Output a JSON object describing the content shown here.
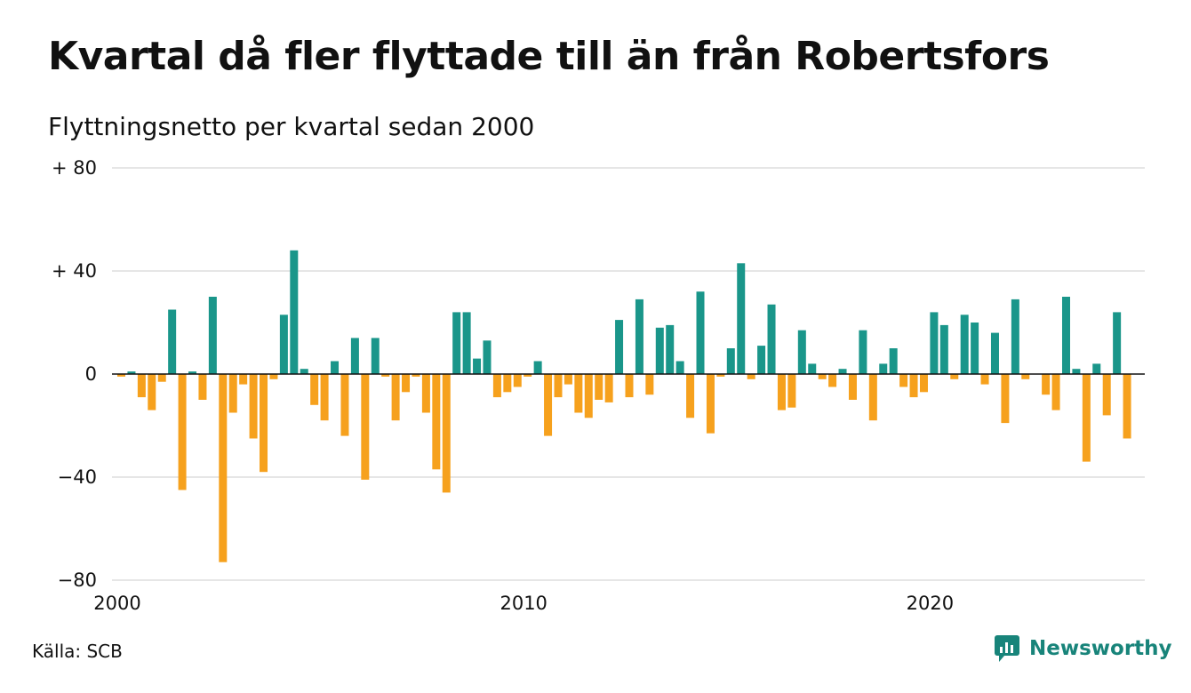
{
  "title": "Kvartal då fler flyttade till än från Robertsfors",
  "subtitle": "Flyttningsnetto per kvartal sedan 2000",
  "source": "Källa: SCB",
  "brand": {
    "name": "Newsworthy",
    "icon": "newsworthy-logo-icon",
    "color": "#18847a"
  },
  "colors": {
    "positive": "#1a968a",
    "negative": "#f6a11d",
    "grid": "#dddddd",
    "zero": "#111111"
  },
  "chart_data": {
    "type": "bar",
    "start": {
      "year": 2000,
      "quarter": 1
    },
    "ylim": [
      -80,
      80
    ],
    "y_ticks": [
      {
        "value": 80,
        "label": "+ 80"
      },
      {
        "value": 40,
        "label": "+ 40"
      },
      {
        "value": 0,
        "label": "0"
      },
      {
        "value": -40,
        "label": "−40"
      },
      {
        "value": -80,
        "label": "−80"
      }
    ],
    "x_ticks": [
      {
        "value": 2000,
        "label": "2000"
      },
      {
        "value": 2010,
        "label": "2010"
      },
      {
        "value": 2020,
        "label": "2020"
      }
    ],
    "grid": true,
    "values": [
      -1,
      1,
      -9,
      -14,
      -3,
      25,
      -45,
      1,
      -10,
      30,
      -73,
      -15,
      -4,
      -25,
      -38,
      -2,
      23,
      48,
      2,
      -12,
      -18,
      5,
      -24,
      14,
      -41,
      14,
      -1,
      -18,
      -7,
      -1,
      -15,
      -37,
      -46,
      24,
      24,
      6,
      13,
      -9,
      -7,
      -5,
      -1,
      5,
      -24,
      -9,
      -4,
      -15,
      -17,
      -10,
      -11,
      21,
      -9,
      29,
      -8,
      18,
      19,
      5,
      -17,
      32,
      -23,
      -1,
      10,
      43,
      -2,
      11,
      27,
      -14,
      -13,
      17,
      4,
      -2,
      -5,
      2,
      -10,
      17,
      -18,
      4,
      10,
      -5,
      -9,
      -7,
      24,
      19,
      -2,
      23,
      20,
      -4,
      16,
      -19,
      29,
      -2,
      0,
      -8,
      -14,
      30,
      2,
      -34,
      4,
      -16,
      24,
      -25
    ]
  }
}
